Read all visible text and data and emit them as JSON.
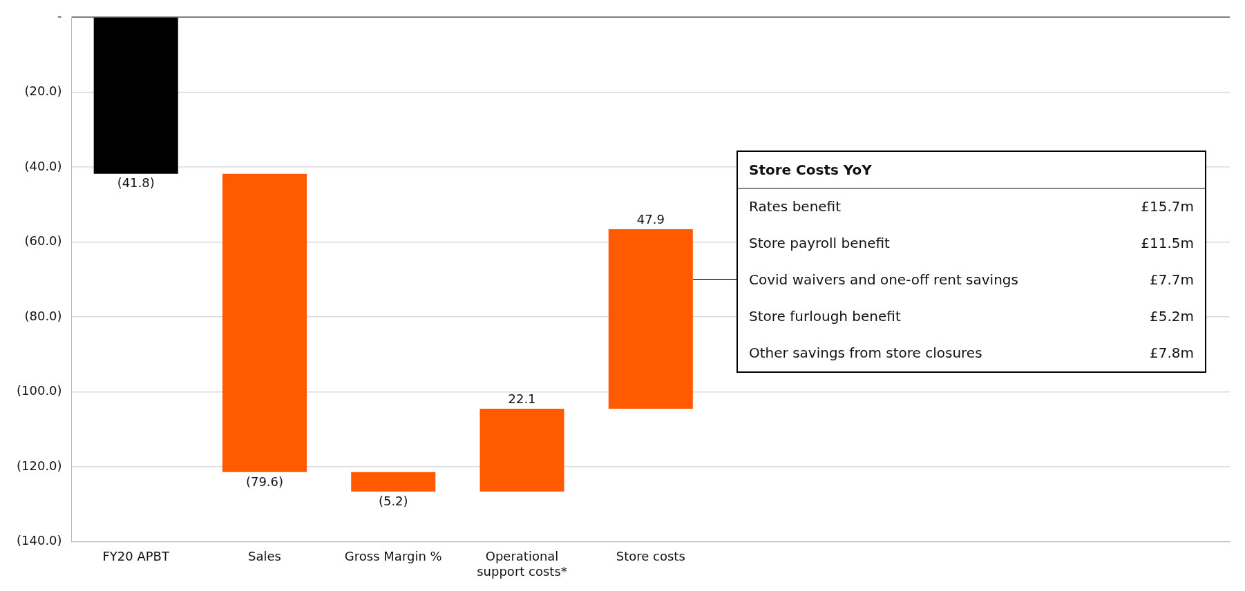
{
  "chart_data": {
    "type": "bar",
    "categories": [
      "FY20 APBT",
      "Sales",
      "Gross Margin %",
      "Operational support costs*",
      "Store costs",
      null,
      null,
      null,
      null
    ],
    "values": [
      -41.8,
      -79.6,
      -5.2,
      22.1,
      47.9,
      null,
      null,
      null,
      null
    ],
    "base": [
      0,
      -41.8,
      -121.4,
      -126.6,
      -104.5,
      null,
      null,
      null,
      null
    ],
    "colors": [
      "#000000",
      "#ff5a00",
      "#ff5a00",
      "#ff5a00",
      "#ff5a00",
      null,
      null,
      null,
      null
    ],
    "value_labels": [
      "(41.8)",
      "(79.6)",
      "(5.2)",
      "22.1",
      "47.9",
      null,
      null,
      null,
      null
    ],
    "ylim": [
      -140,
      0
    ],
    "yticks": [
      {
        "value": 0,
        "label": "-"
      },
      {
        "value": -20,
        "label": "(20.0)"
      },
      {
        "value": -40,
        "label": "(40.0)"
      },
      {
        "value": -60,
        "label": "(60.0)"
      },
      {
        "value": -80,
        "label": "(80.0)"
      },
      {
        "value": -100,
        "label": "(100.0)"
      },
      {
        "value": -120,
        "label": "(120.0)"
      },
      {
        "value": -140,
        "label": "(140.0)"
      }
    ],
    "grid": "y",
    "legend": false,
    "annotations": [
      "Store Costs YoY",
      "Rates benefit",
      "£15.7m",
      "Store payroll benefit",
      "£11.5m",
      "Covid waivers and one-off rent savings",
      "£7.7m",
      "Store furlough benefit",
      "£5.2m",
      "Other savings from store closures",
      "£7.8m"
    ]
  }
}
